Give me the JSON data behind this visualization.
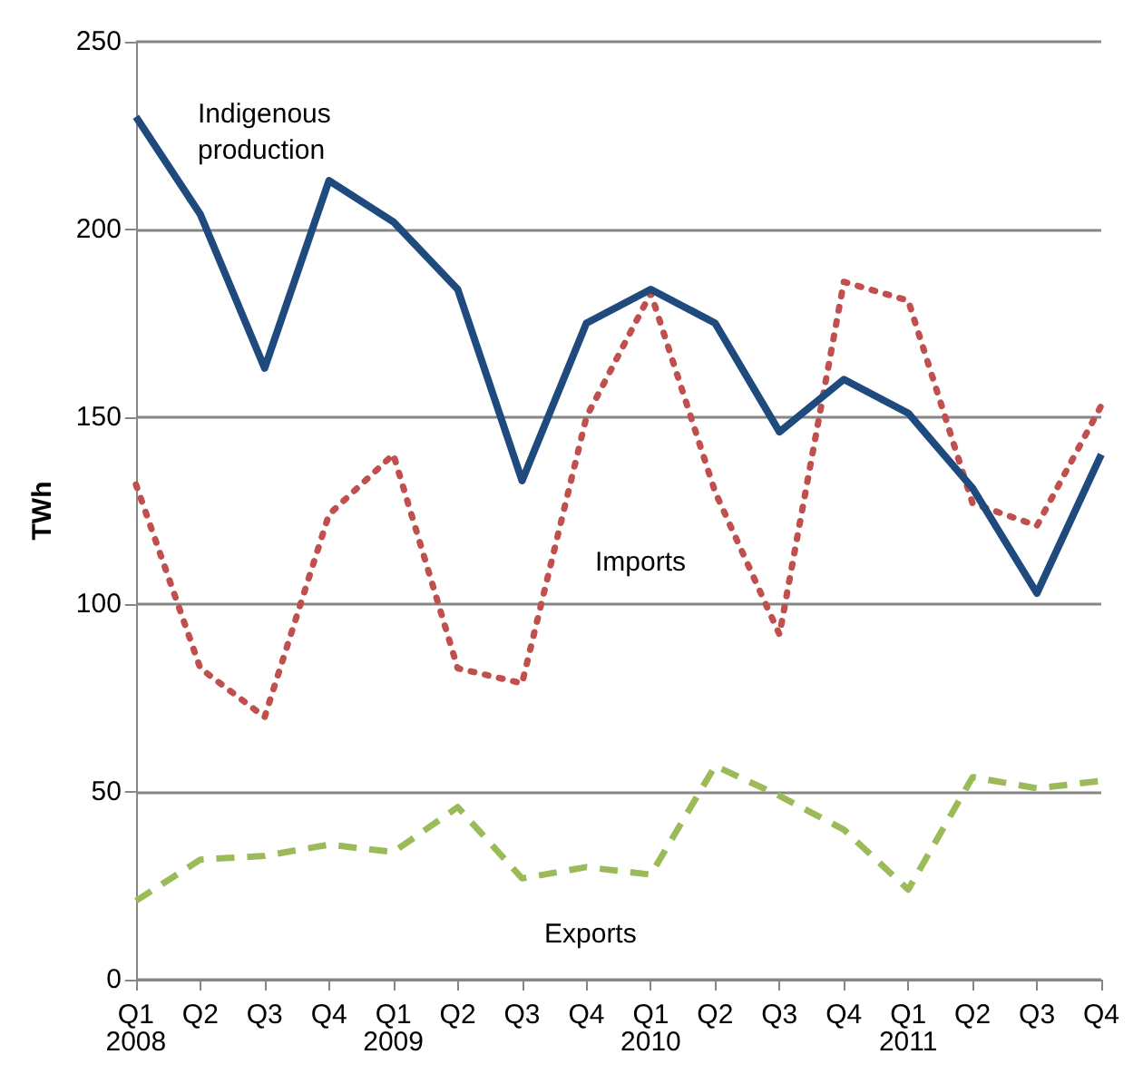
{
  "chart_data": {
    "type": "line",
    "ylabel": "TWh",
    "categories": [
      "Q1\n2008",
      "Q2",
      "Q3",
      "Q4",
      "Q1\n2009",
      "Q2",
      "Q3",
      "Q4",
      "Q1\n2010",
      "Q2",
      "Q3",
      "Q4",
      "Q1\n2011",
      "Q2",
      "Q3",
      "Q4"
    ],
    "series": [
      {
        "name": "Indigenous production",
        "color": "#1f4a7e",
        "line_style": "solid",
        "values": [
          230,
          204,
          163,
          213,
          202,
          184,
          133,
          175,
          184,
          175,
          146,
          160,
          151,
          131,
          103,
          140
        ]
      },
      {
        "name": "Imports",
        "color": "#c0504d",
        "line_style": "dotted",
        "values": [
          132,
          83,
          70,
          124,
          140,
          83,
          79,
          150,
          183,
          130,
          92,
          186,
          181,
          127,
          121,
          153
        ]
      },
      {
        "name": "Exports",
        "color": "#9bbb59",
        "line_style": "dashed",
        "values": [
          21,
          32,
          33,
          36,
          34,
          46,
          27,
          30,
          28,
          57,
          49,
          40,
          24,
          54,
          51,
          53
        ]
      }
    ],
    "ylim": [
      0,
      250
    ],
    "yticks": [
      0,
      50,
      100,
      150,
      200,
      250
    ],
    "grid": "y",
    "legend": false,
    "marker": "none"
  }
}
